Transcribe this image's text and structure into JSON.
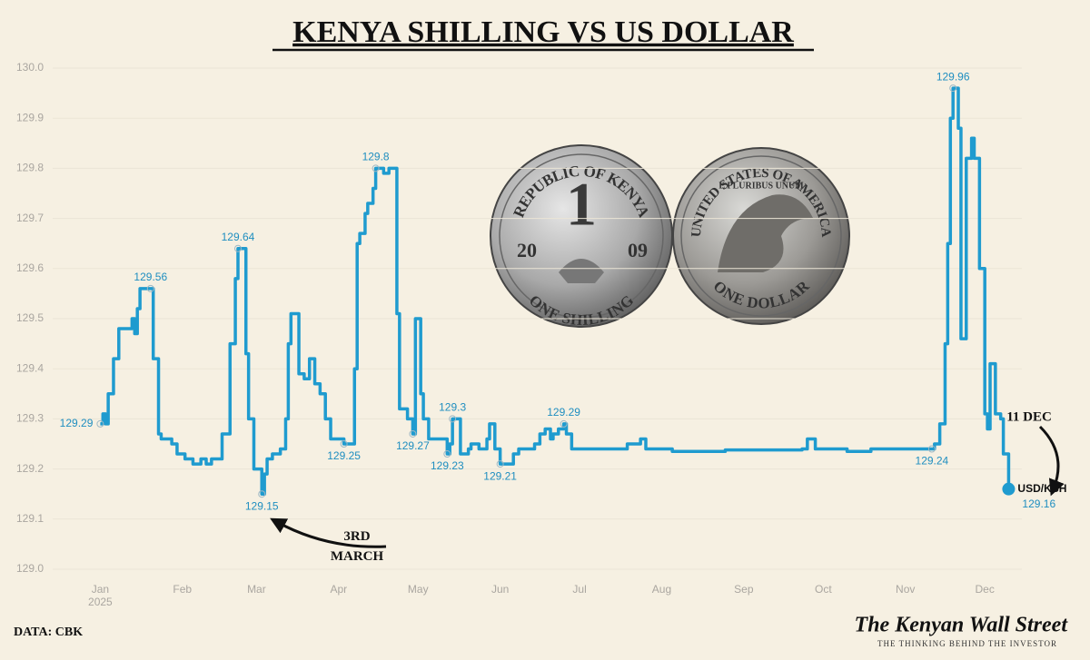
{
  "chart_data": {
    "type": "line",
    "title": "KENYA SHILLING VS US DOLLAR",
    "x": [
      0,
      1,
      2,
      3,
      5,
      7,
      10,
      12,
      13,
      14,
      15,
      19,
      20,
      22,
      23,
      27,
      29,
      32,
      35,
      38,
      40,
      42,
      43,
      46,
      49,
      51,
      52,
      55,
      56,
      58,
      61,
      62,
      63,
      65,
      68,
      70,
      71,
      72,
      75,
      77,
      79,
      81,
      83,
      85,
      87,
      92,
      94,
      96,
      97,
      98,
      100,
      101,
      103,
      104,
      107,
      109,
      112,
      113,
      116,
      118,
      119,
      121,
      122,
      124,
      127,
      131,
      132,
      133,
      136,
      139,
      140,
      143,
      146,
      147,
      149,
      151,
      153,
      156,
      158,
      161,
      164,
      166,
      168,
      170,
      171,
      173,
      175,
      176,
      178,
      188,
      199,
      204,
      206,
      216,
      236,
      265,
      267,
      270,
      282,
      291,
      314,
      315,
      317,
      319,
      320,
      321,
      322,
      324,
      325,
      327,
      329,
      330,
      332,
      334,
      335,
      336,
      338,
      340,
      341,
      343
    ],
    "series": [
      {
        "name": "USD/KSH",
        "color": "#1f9bcf",
        "values": [
          129.29,
          129.31,
          129.29,
          129.35,
          129.42,
          129.48,
          129.48,
          129.5,
          129.47,
          129.52,
          129.56,
          129.56,
          129.42,
          129.27,
          129.26,
          129.25,
          129.23,
          129.22,
          129.21,
          129.22,
          129.21,
          129.22,
          129.22,
          129.27,
          129.45,
          129.58,
          129.64,
          129.43,
          129.3,
          129.2,
          129.15,
          129.19,
          129.22,
          129.23,
          129.24,
          129.3,
          129.45,
          129.51,
          129.39,
          129.38,
          129.42,
          129.37,
          129.35,
          129.3,
          129.26,
          129.25,
          129.25,
          129.4,
          129.65,
          129.67,
          129.71,
          129.73,
          129.76,
          129.8,
          129.79,
          129.8,
          129.51,
          129.32,
          129.3,
          129.27,
          129.5,
          129.35,
          129.3,
          129.26,
          129.26,
          129.23,
          129.25,
          129.3,
          129.23,
          129.24,
          129.25,
          129.24,
          129.26,
          129.29,
          129.24,
          129.21,
          129.21,
          129.23,
          129.24,
          129.24,
          129.25,
          129.27,
          129.28,
          129.26,
          129.27,
          129.28,
          129.29,
          129.27,
          129.24,
          129.24,
          129.25,
          129.26,
          129.24,
          129.235,
          129.238,
          129.24,
          129.26,
          129.24,
          129.235,
          129.24,
          129.24,
          129.25,
          129.29,
          129.45,
          129.65,
          129.9,
          129.96,
          129.88,
          129.46,
          129.82,
          129.86,
          129.82,
          129.6,
          129.31,
          129.28,
          129.41,
          129.31,
          129.3,
          129.23,
          129.16
        ],
        "value_labels": [
          "129.29",
          null,
          null,
          null,
          null,
          null,
          null,
          null,
          null,
          null,
          null,
          "129.56",
          null,
          null,
          null,
          null,
          null,
          null,
          null,
          null,
          null,
          null,
          null,
          null,
          null,
          null,
          "129.64",
          null,
          null,
          null,
          "129.15",
          null,
          null,
          null,
          null,
          null,
          null,
          null,
          null,
          null,
          null,
          null,
          null,
          null,
          null,
          "129.25",
          null,
          null,
          null,
          null,
          null,
          null,
          null,
          "129.8",
          null,
          null,
          null,
          null,
          null,
          "129.27",
          null,
          null,
          null,
          null,
          null,
          "129.23",
          null,
          "129.3",
          null,
          null,
          null,
          null,
          null,
          null,
          null,
          "129.21",
          null,
          null,
          null,
          null,
          null,
          null,
          null,
          null,
          null,
          null,
          "129.29",
          null,
          null,
          null,
          null,
          null,
          null,
          null,
          null,
          null,
          null,
          null,
          null,
          null,
          "129.24",
          null,
          null,
          null,
          null,
          null,
          "129.96",
          null,
          null,
          null,
          null,
          null,
          null,
          null,
          null,
          null,
          null,
          null,
          null,
          "129.16"
        ]
      }
    ],
    "xlim": [
      -31,
      348
    ],
    "xticks": [
      {
        "value": 0,
        "label": "Jan"
      },
      {
        "value": 31,
        "label": "Feb"
      },
      {
        "value": 59,
        "label": "Mar"
      },
      {
        "value": 90,
        "label": "Apr"
      },
      {
        "value": 120,
        "label": "May"
      },
      {
        "value": 151,
        "label": "Jun"
      },
      {
        "value": 181,
        "label": "Jul"
      },
      {
        "value": 212,
        "label": "Aug"
      },
      {
        "value": 243,
        "label": "Sep"
      },
      {
        "value": 273,
        "label": "Oct"
      },
      {
        "value": 304,
        "label": "Nov"
      },
      {
        "value": 334,
        "label": "Dec"
      }
    ],
    "year": "2025",
    "ylim": [
      129.0,
      130.0
    ],
    "yticks": [
      {
        "value": 129.0,
        "label": "129.0"
      },
      129.1,
      129.2,
      129.3,
      129.4,
      129.5,
      129.6,
      129.7,
      129.8,
      129.9,
      {
        "value": 130.0,
        "label": "130.0"
      }
    ],
    "grid": true,
    "annotations": [
      {
        "text": "3RD MARCH"
      },
      {
        "text": "11 DEC"
      }
    ],
    "source": "DATA: CBK"
  },
  "coins": {
    "kenya_top": "REPUBLIC OF KENYA",
    "kenya_digit": "1",
    "kenya_year_left": "20",
    "kenya_year_right": "09",
    "kenya_bottom": "ONE SHILLING",
    "usa_top": "UNITED STATES OF AMERICA",
    "usa_motto": "E PLURIBUS UNUM",
    "usa_bottom": "ONE DOLLAR"
  },
  "brand": {
    "name": "The Kenyan Wall Street",
    "tagline": "THE THINKING BEHIND THE INVESTOR"
  }
}
